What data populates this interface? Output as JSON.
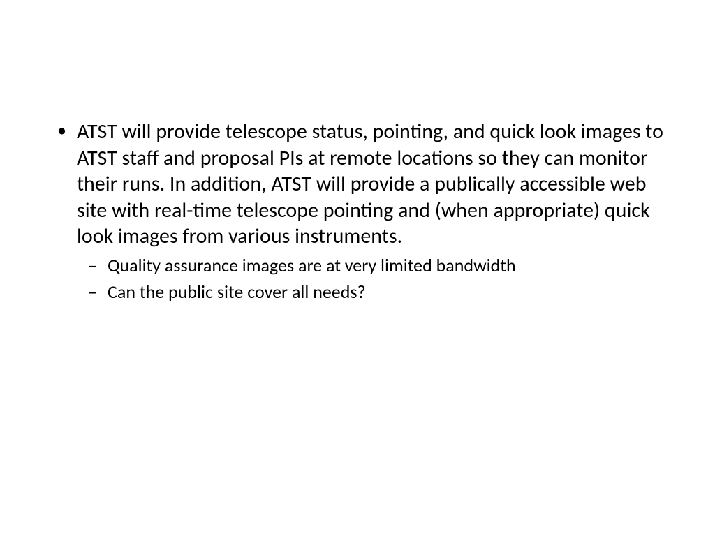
{
  "slide": {
    "background_color": "#ffffff",
    "text_color": "#000000",
    "font_family": "Calibri",
    "bullets": [
      {
        "text": "ATST will provide telescope status, pointing, and quick look images to ATST staff and proposal PIs at remote locations so they can monitor their runs. In addition, ATST will provide a publically accessible web site with real-time telescope pointing and (when appropriate) quick look images from various instruments.",
        "fontsize": 30,
        "sub_bullets": [
          {
            "text": "Quality assurance images are at very limited bandwidth",
            "fontsize": 26
          },
          {
            "text": "Can the public site cover all needs?",
            "fontsize": 26
          }
        ]
      }
    ]
  }
}
